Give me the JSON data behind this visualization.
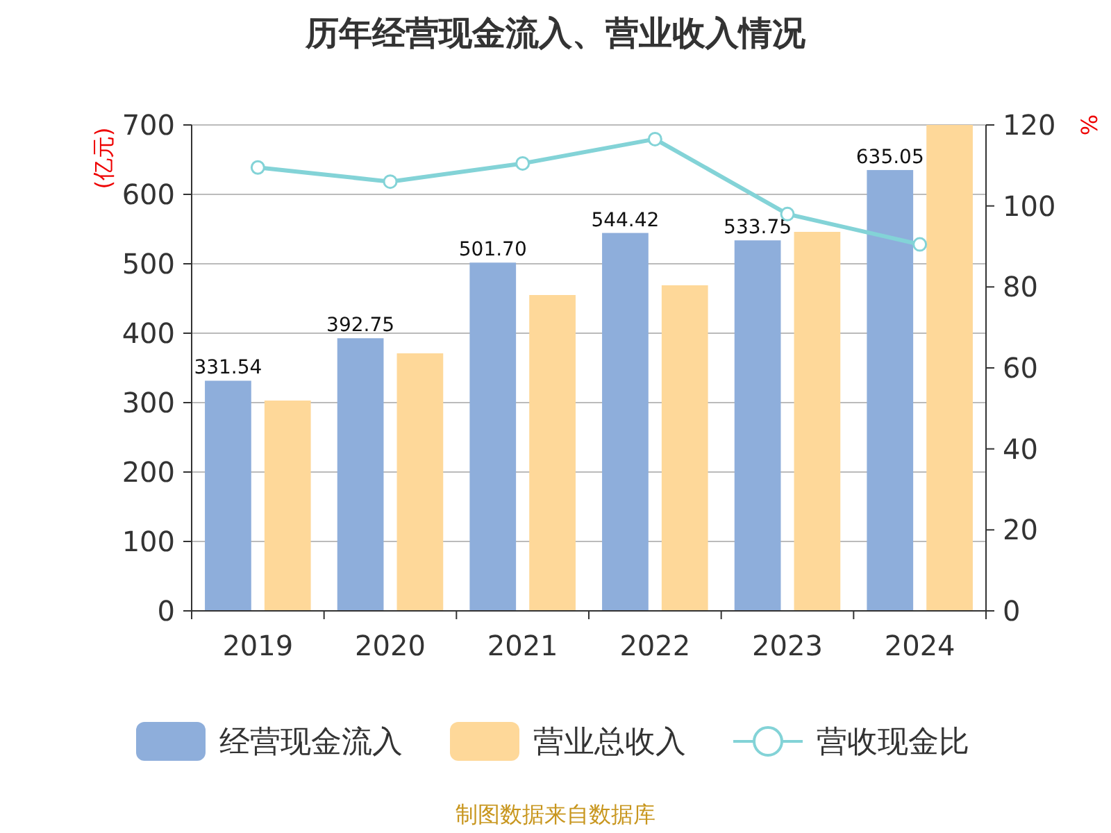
{
  "chart_data": {
    "type": "bar",
    "title": "历年经营现金流入、营业收入情况",
    "ylabel": "(亿元)",
    "y2label": "%",
    "categories": [
      "2019",
      "2020",
      "2021",
      "2022",
      "2023",
      "2024"
    ],
    "series": [
      {
        "name": "经营现金流入",
        "color": "#8eaedb",
        "values": [
          331.54,
          392.75,
          501.7,
          544.42,
          533.75,
          635.05
        ],
        "value_labels": [
          "331.54",
          "392.75",
          "501.70",
          "544.42",
          "533.75",
          "635.05"
        ]
      },
      {
        "name": "营业总收入",
        "color": "#fed899",
        "values": [
          303,
          371,
          455,
          469,
          546,
          700
        ]
      },
      {
        "name": "营收现金比",
        "type": "line",
        "axis": "y2",
        "color": "#83d3d7",
        "values": [
          109.5,
          106,
          110.5,
          116.5,
          98,
          90.5
        ]
      }
    ],
    "ylim": [
      0,
      700
    ],
    "yticks": [
      0,
      100,
      200,
      300,
      400,
      500,
      600,
      700
    ],
    "y2lim": [
      0,
      120
    ],
    "y2ticks": [
      0,
      20,
      40,
      60,
      80,
      100,
      120
    ],
    "grid": "y",
    "legend": "bottom",
    "marker": "circle",
    "annotations": [
      "制图数据来自数据库"
    ]
  }
}
